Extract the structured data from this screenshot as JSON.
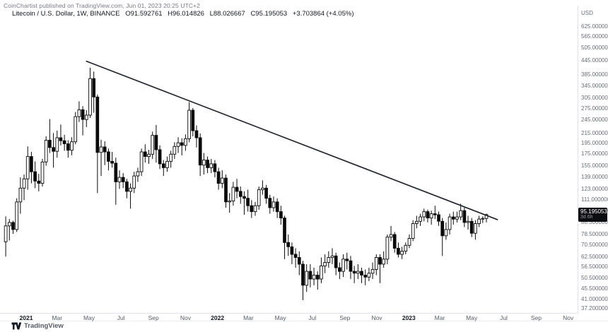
{
  "attribution": "CoinChartist published on TradingView.com, Jun 01, 2023 20:25 UTC+2",
  "legend": {
    "symbol": "Litecoin / U.S. Dollar, 1W, BINANCE",
    "open": "O91.592761",
    "high": "H96.014826",
    "low": "L88.026667",
    "close": "C95.195053",
    "change": "+3.703864 (+4.05%)"
  },
  "price_axis": {
    "currency_label": "USD",
    "ticks": [
      "625.000000",
      "565.000000",
      "505.000000",
      "445.000000",
      "385.000000",
      "345.000000",
      "305.000000",
      "275.000000",
      "245.000000",
      "215.000000",
      "195.000000",
      "175.000000",
      "155.000000",
      "139.000000",
      "123.000000",
      "111.000000",
      "98.500000",
      "88.500000",
      "78.500000",
      "70.500000",
      "62.500000",
      "56.500000",
      "50.500000",
      "45.500000",
      "41.000000",
      "37.200000"
    ],
    "price_label": {
      "value": "95.195053",
      "countdown": "3d 6h"
    }
  },
  "time_axis": {
    "labels": [
      {
        "label": "2021",
        "date": "2021-01-01",
        "bold": true
      },
      {
        "label": "Mar",
        "date": "2021-03-01",
        "bold": false
      },
      {
        "label": "May",
        "date": "2021-05-01",
        "bold": false
      },
      {
        "label": "Jul",
        "date": "2021-07-01",
        "bold": false
      },
      {
        "label": "Sep",
        "date": "2021-09-01",
        "bold": false
      },
      {
        "label": "Nov",
        "date": "2021-11-01",
        "bold": false
      },
      {
        "label": "2022",
        "date": "2022-01-01",
        "bold": true
      },
      {
        "label": "Mar",
        "date": "2022-03-01",
        "bold": false
      },
      {
        "label": "May",
        "date": "2022-05-01",
        "bold": false
      },
      {
        "label": "Jul",
        "date": "2022-07-01",
        "bold": false
      },
      {
        "label": "Sep",
        "date": "2022-09-01",
        "bold": false
      },
      {
        "label": "Nov",
        "date": "2022-11-01",
        "bold": false
      },
      {
        "label": "2023",
        "date": "2023-01-01",
        "bold": true
      },
      {
        "label": "Mar",
        "date": "2023-03-01",
        "bold": false
      },
      {
        "label": "May",
        "date": "2023-05-01",
        "bold": false
      },
      {
        "label": "Jul",
        "date": "2023-07-01",
        "bold": false
      },
      {
        "label": "Sep",
        "date": "2023-09-01",
        "bold": false
      },
      {
        "label": "Nov",
        "date": "2023-11-01",
        "bold": false
      }
    ]
  },
  "footer": {
    "brand": "TradingView"
  },
  "chart_data": {
    "type": "candlestick",
    "title": "Litecoin / U.S. Dollar, 1W, BINANCE",
    "interval": "1W",
    "scale": "log",
    "grid": false,
    "price_range": [
      37.2,
      625
    ],
    "last_price": 95.195053,
    "countdown": "3d 6h",
    "colors": {
      "up": "#ffffff",
      "down": "#0a0a0a",
      "border": "#0a0a0a",
      "wick": "#0a0a0a",
      "trendline": "#23262e",
      "label_bg": "#0c0d10"
    },
    "trendline": {
      "start": {
        "date": "2021-04-26",
        "price": 440
      },
      "end": {
        "date": "2023-06-19",
        "price": 90.5
      }
    },
    "candles": [
      [
        "2020-11-23",
        72.5,
        93.5,
        62.6,
        85.0
      ],
      [
        "2020-11-30",
        85.0,
        91.0,
        73.5,
        88.0
      ],
      [
        "2020-12-07",
        88.0,
        89.5,
        78.5,
        82.0
      ],
      [
        "2020-12-14",
        82.0,
        112.0,
        80.0,
        108.0
      ],
      [
        "2020-12-21",
        108.0,
        138.0,
        96.0,
        124.0
      ],
      [
        "2020-12-28",
        124.0,
        142.0,
        110.0,
        136.0
      ],
      [
        "2021-01-04",
        136.0,
        188.0,
        122.0,
        170.0
      ],
      [
        "2021-01-11",
        170.0,
        178.0,
        130.0,
        146.0
      ],
      [
        "2021-01-18",
        146.0,
        162.0,
        124.0,
        133.0
      ],
      [
        "2021-01-25",
        133.0,
        143.0,
        120.0,
        130.0
      ],
      [
        "2021-02-01",
        130.0,
        166.0,
        126.0,
        161.0
      ],
      [
        "2021-02-08",
        161.0,
        208.0,
        155.0,
        200.0
      ],
      [
        "2021-02-15",
        200.0,
        247.0,
        176.0,
        186.0
      ],
      [
        "2021-02-22",
        186.0,
        215.0,
        152.0,
        179.0
      ],
      [
        "2021-03-01",
        179.0,
        220.0,
        168.0,
        205.0
      ],
      [
        "2021-03-08",
        205.0,
        234.0,
        190.0,
        199.0
      ],
      [
        "2021-03-15",
        199.0,
        211.0,
        180.0,
        193.0
      ],
      [
        "2021-03-22",
        193.0,
        200.0,
        168.0,
        181.0
      ],
      [
        "2021-03-29",
        181.0,
        206.0,
        172.0,
        197.0
      ],
      [
        "2021-04-05",
        197.0,
        265.0,
        192.0,
        253.0
      ],
      [
        "2021-04-12",
        253.0,
        295.0,
        240.0,
        271.0
      ],
      [
        "2021-04-19",
        271.0,
        281.0,
        210.0,
        246.0
      ],
      [
        "2021-04-26",
        246.0,
        270.0,
        228.0,
        257.0
      ],
      [
        "2021-05-03",
        257.0,
        413.0,
        250.0,
        370.0
      ],
      [
        "2021-05-10",
        370.0,
        397.0,
        263.0,
        308.0
      ],
      [
        "2021-05-17",
        308.0,
        316.0,
        118.0,
        177.0
      ],
      [
        "2021-05-24",
        177.0,
        201.0,
        140.0,
        187.0
      ],
      [
        "2021-05-31",
        187.0,
        198.0,
        156.0,
        178.0
      ],
      [
        "2021-06-07",
        178.0,
        184.0,
        148.0,
        162.0
      ],
      [
        "2021-06-14",
        162.0,
        178.0,
        152.0,
        159.0
      ],
      [
        "2021-06-21",
        159.0,
        168.0,
        105.0,
        132.0
      ],
      [
        "2021-06-28",
        132.0,
        148.0,
        123.0,
        138.0
      ],
      [
        "2021-07-05",
        138.0,
        144.0,
        124.0,
        132.0
      ],
      [
        "2021-07-12",
        132.0,
        136.0,
        112.0,
        120.0
      ],
      [
        "2021-07-19",
        120.0,
        130.0,
        101.0,
        124.0
      ],
      [
        "2021-07-26",
        124.0,
        146.0,
        118.0,
        140.0
      ],
      [
        "2021-08-02",
        140.0,
        152.0,
        132.0,
        146.0
      ],
      [
        "2021-08-09",
        146.0,
        184.0,
        140.0,
        178.0
      ],
      [
        "2021-08-16",
        178.0,
        192.0,
        160.0,
        170.0
      ],
      [
        "2021-08-23",
        170.0,
        182.0,
        158.0,
        174.0
      ],
      [
        "2021-08-30",
        174.0,
        218.0,
        166.0,
        210.0
      ],
      [
        "2021-09-06",
        210.0,
        233.0,
        160.0,
        182.0
      ],
      [
        "2021-09-13",
        182.0,
        190.0,
        150.0,
        158.0
      ],
      [
        "2021-09-20",
        158.0,
        164.0,
        140.0,
        152.0
      ],
      [
        "2021-09-27",
        152.0,
        170.0,
        146.0,
        162.0
      ],
      [
        "2021-10-04",
        162.0,
        180.0,
        152.0,
        174.0
      ],
      [
        "2021-10-11",
        174.0,
        196.0,
        166.0,
        188.0
      ],
      [
        "2021-10-18",
        188.0,
        206.0,
        176.0,
        195.0
      ],
      [
        "2021-10-25",
        195.0,
        204.0,
        172.0,
        190.0
      ],
      [
        "2021-11-01",
        190.0,
        212.0,
        180.0,
        203.0
      ],
      [
        "2021-11-08",
        203.0,
        293.0,
        196.0,
        270.0
      ],
      [
        "2021-11-15",
        270.0,
        276.0,
        208.0,
        220.0
      ],
      [
        "2021-11-22",
        220.0,
        232.0,
        186.0,
        205.0
      ],
      [
        "2021-11-29",
        205.0,
        214.0,
        140.0,
        156.0
      ],
      [
        "2021-12-06",
        156.0,
        176.0,
        142.0,
        164.0
      ],
      [
        "2021-12-13",
        164.0,
        170.0,
        144.0,
        152.0
      ],
      [
        "2021-12-20",
        152.0,
        166.0,
        144.0,
        158.0
      ],
      [
        "2021-12-27",
        158.0,
        164.0,
        138.0,
        146.0
      ],
      [
        "2022-01-03",
        146.0,
        152.0,
        122.0,
        130.0
      ],
      [
        "2022-01-10",
        130.0,
        148.0,
        124.0,
        137.0
      ],
      [
        "2022-01-17",
        137.0,
        142.0,
        102.0,
        108.0
      ],
      [
        "2022-01-24",
        108.0,
        118.0,
        97.0,
        109.0
      ],
      [
        "2022-01-31",
        109.0,
        132.0,
        104.0,
        125.0
      ],
      [
        "2022-02-07",
        125.0,
        136.0,
        112.0,
        120.0
      ],
      [
        "2022-02-14",
        120.0,
        126.0,
        106.0,
        114.0
      ],
      [
        "2022-02-21",
        114.0,
        120.0,
        95.0,
        112.0
      ],
      [
        "2022-02-28",
        112.0,
        122.0,
        98.0,
        104.0
      ],
      [
        "2022-03-07",
        104.0,
        110.0,
        92.0,
        98.0
      ],
      [
        "2022-03-14",
        98.0,
        108.0,
        94.0,
        104.0
      ],
      [
        "2022-03-21",
        104.0,
        126.0,
        100.0,
        122.0
      ],
      [
        "2022-03-28",
        122.0,
        134.0,
        116.0,
        124.0
      ],
      [
        "2022-04-04",
        124.0,
        128.0,
        106.0,
        112.0
      ],
      [
        "2022-04-11",
        112.0,
        116.0,
        96.0,
        102.0
      ],
      [
        "2022-04-18",
        102.0,
        114.0,
        98.0,
        108.0
      ],
      [
        "2022-04-25",
        108.0,
        112.0,
        92.0,
        98.0
      ],
      [
        "2022-05-02",
        98.0,
        104.0,
        86.0,
        92.0
      ],
      [
        "2022-05-09",
        92.0,
        94.0,
        61.0,
        72.0
      ],
      [
        "2022-05-16",
        72.0,
        78.0,
        63.0,
        69.0
      ],
      [
        "2022-05-23",
        69.0,
        72.0,
        58.0,
        64.0
      ],
      [
        "2022-05-30",
        64.0,
        68.0,
        56.0,
        62.0
      ],
      [
        "2022-06-06",
        62.0,
        66.0,
        52.0,
        58.0
      ],
      [
        "2022-06-13",
        58.0,
        60.0,
        40.5,
        47.0
      ],
      [
        "2022-06-20",
        47.0,
        58.0,
        44.0,
        54.0
      ],
      [
        "2022-06-27",
        54.0,
        58.0,
        46.0,
        50.0
      ],
      [
        "2022-07-04",
        50.0,
        56.0,
        47.0,
        52.0
      ],
      [
        "2022-07-11",
        52.0,
        54.0,
        45.0,
        50.0
      ],
      [
        "2022-07-18",
        50.0,
        62.0,
        48.0,
        57.0
      ],
      [
        "2022-07-25",
        57.0,
        64.0,
        53.0,
        59.0
      ],
      [
        "2022-08-01",
        59.0,
        66.0,
        56.0,
        62.0
      ],
      [
        "2022-08-08",
        62.0,
        68.0,
        58.0,
        63.0
      ],
      [
        "2022-08-15",
        63.0,
        65.0,
        52.0,
        56.0
      ],
      [
        "2022-08-22",
        56.0,
        59.0,
        50.0,
        54.0
      ],
      [
        "2022-08-29",
        54.0,
        64.0,
        51.0,
        61.0
      ],
      [
        "2022-09-05",
        61.0,
        65.0,
        55.0,
        60.0
      ],
      [
        "2022-09-12",
        60.0,
        63.0,
        50.0,
        54.0
      ],
      [
        "2022-09-19",
        54.0,
        57.0,
        48.0,
        53.0
      ],
      [
        "2022-09-26",
        53.0,
        58.0,
        50.0,
        54.0
      ],
      [
        "2022-10-03",
        54.0,
        56.0,
        48.0,
        52.0
      ],
      [
        "2022-10-10",
        52.0,
        55.0,
        47.0,
        51.0
      ],
      [
        "2022-10-17",
        51.0,
        56.0,
        49.0,
        53.0
      ],
      [
        "2022-10-24",
        53.0,
        59.0,
        50.0,
        55.0
      ],
      [
        "2022-10-31",
        55.0,
        64.0,
        52.0,
        62.0
      ],
      [
        "2022-11-07",
        62.0,
        64.0,
        48.0,
        58.0
      ],
      [
        "2022-11-14",
        58.0,
        66.0,
        56.0,
        61.0
      ],
      [
        "2022-11-21",
        61.0,
        78.0,
        58.0,
        76.0
      ],
      [
        "2022-11-28",
        76.0,
        85.0,
        73.0,
        78.0
      ],
      [
        "2022-12-05",
        78.0,
        80.0,
        65.0,
        68.0
      ],
      [
        "2022-12-12",
        68.0,
        72.0,
        62.0,
        64.0
      ],
      [
        "2022-12-19",
        64.0,
        69.0,
        61.0,
        66.0
      ],
      [
        "2022-12-26",
        66.0,
        72.0,
        64.0,
        70.0
      ],
      [
        "2023-01-02",
        70.0,
        78.0,
        68.0,
        75.0
      ],
      [
        "2023-01-09",
        75.0,
        90.0,
        73.0,
        87.0
      ],
      [
        "2023-01-16",
        87.0,
        94.0,
        83.0,
        89.0
      ],
      [
        "2023-01-23",
        89.0,
        96.0,
        85.0,
        93.0
      ],
      [
        "2023-01-30",
        93.0,
        101.0,
        89.0,
        98.0
      ],
      [
        "2023-02-06",
        98.0,
        100.0,
        88.0,
        92.0
      ],
      [
        "2023-02-13",
        92.0,
        99.0,
        86.0,
        96.0
      ],
      [
        "2023-02-20",
        96.0,
        104.0,
        91.0,
        95.0
      ],
      [
        "2023-02-27",
        95.0,
        98.0,
        85.0,
        89.0
      ],
      [
        "2023-03-06",
        89.0,
        92.0,
        63.0,
        77.0
      ],
      [
        "2023-03-13",
        77.0,
        88.0,
        74.0,
        82.0
      ],
      [
        "2023-03-20",
        82.0,
        96.0,
        78.0,
        93.0
      ],
      [
        "2023-03-27",
        93.0,
        98.0,
        86.0,
        91.0
      ],
      [
        "2023-04-03",
        91.0,
        98.0,
        88.0,
        93.0
      ],
      [
        "2023-04-10",
        93.0,
        106.0,
        90.0,
        99.0
      ],
      [
        "2023-04-17",
        99.0,
        102.0,
        84.0,
        88.0
      ],
      [
        "2023-04-24",
        88.0,
        94.0,
        82.0,
        89.0
      ],
      [
        "2023-05-01",
        89.0,
        92.0,
        76.0,
        79.0
      ],
      [
        "2023-05-08",
        79.0,
        90.0,
        74.0,
        87.0
      ],
      [
        "2023-05-15",
        87.0,
        94.0,
        84.0,
        91.0
      ],
      [
        "2023-05-22",
        91.0,
        93.5,
        87.5,
        91.6
      ],
      [
        "2023-05-29",
        91.592761,
        96.014826,
        88.026667,
        95.195053
      ]
    ]
  }
}
